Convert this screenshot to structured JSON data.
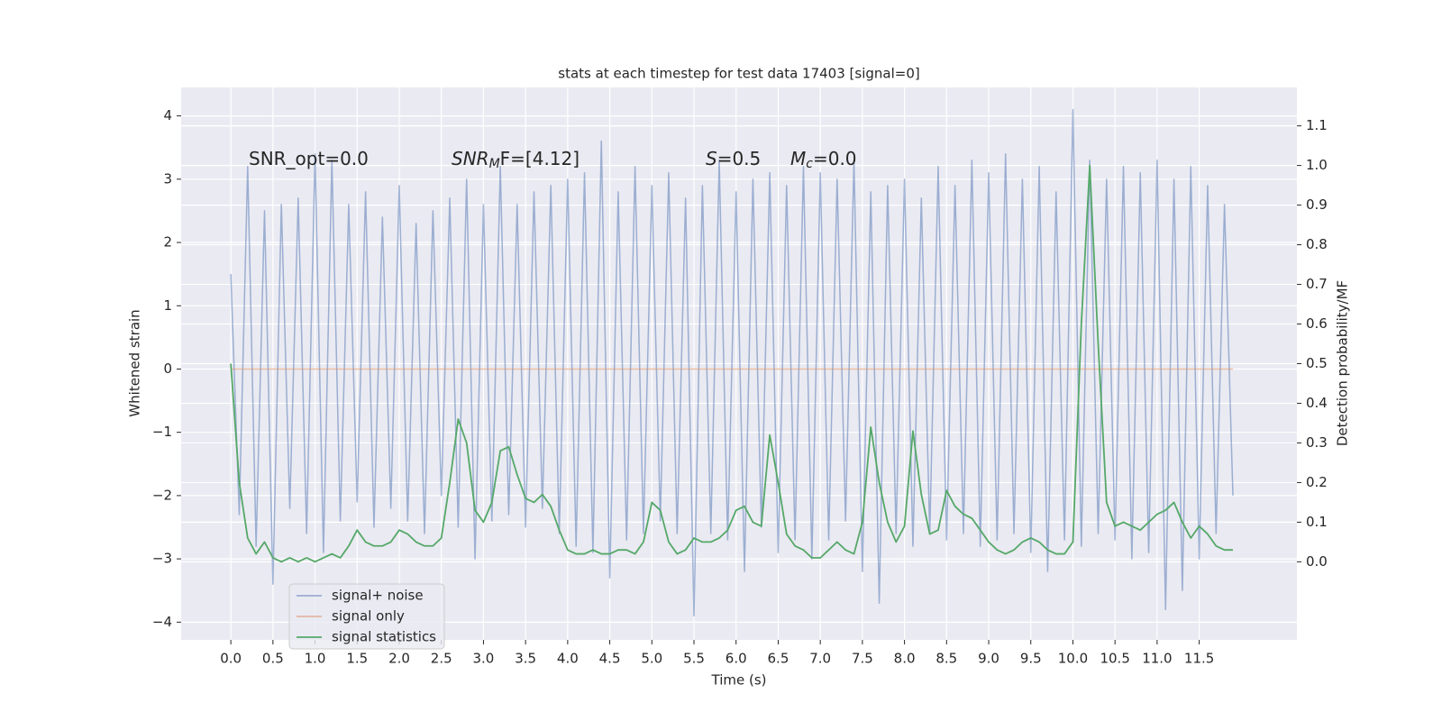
{
  "chart_data": {
    "type": "line",
    "title": "stats at each timestep for test data 17403 [signal=0]",
    "xlabel": "Time (s)",
    "ylabel": "Whitened strain",
    "y2label": "Detection probability/MF",
    "annotations": [
      {
        "text": "SNR_opt=0.0"
      },
      {
        "base": "SNR",
        "sub": "M",
        "rest": "F=[4.12]"
      },
      {
        "base": "S",
        "rest": "=0.5"
      },
      {
        "base": "M",
        "sub": "c",
        "rest": "=0.0"
      }
    ],
    "xlim": [
      -0.59,
      12.66
    ],
    "ylim": [
      -4.28,
      4.45
    ],
    "y2lim": [
      -0.197,
      1.197
    ],
    "xticks": [
      {
        "value": 0,
        "label": "0.0"
      },
      {
        "value": 0.5,
        "label": "0.5"
      },
      {
        "value": 1,
        "label": "1.0"
      },
      {
        "value": 1.5,
        "label": "1.5"
      },
      {
        "value": 2,
        "label": "2.0"
      },
      {
        "value": 2.5,
        "label": "2.5"
      },
      {
        "value": 3,
        "label": "3.0"
      },
      {
        "value": 3.5,
        "label": "3.5"
      },
      {
        "value": 4,
        "label": "4.0"
      },
      {
        "value": 4.5,
        "label": "4.5"
      },
      {
        "value": 5,
        "label": "5.0"
      },
      {
        "value": 5.5,
        "label": "5.5"
      },
      {
        "value": 6,
        "label": "6.0"
      },
      {
        "value": 6.5,
        "label": "6.5"
      },
      {
        "value": 7,
        "label": "7.0"
      },
      {
        "value": 7.5,
        "label": "7.5"
      },
      {
        "value": 8,
        "label": "8.0"
      },
      {
        "value": 8.5,
        "label": "8.5"
      },
      {
        "value": 9,
        "label": "9.0"
      },
      {
        "value": 9.5,
        "label": "9.5"
      },
      {
        "value": 10,
        "label": "10.0"
      },
      {
        "value": 10.5,
        "label": "10.5"
      },
      {
        "value": 11,
        "label": "11.0"
      },
      {
        "value": 11.5,
        "label": "11.5"
      }
    ],
    "yticks": [
      {
        "value": -4,
        "label": "−4"
      },
      {
        "value": -3,
        "label": "−3"
      },
      {
        "value": -2,
        "label": "−2"
      },
      {
        "value": -1,
        "label": "−1"
      },
      0,
      1,
      2,
      3,
      4
    ],
    "y2ticks": [
      {
        "value": 0,
        "label": "0.0"
      },
      {
        "value": 0.1,
        "label": "0.1"
      },
      {
        "value": 0.2,
        "label": "0.2"
      },
      {
        "value": 0.3,
        "label": "0.3"
      },
      {
        "value": 0.4,
        "label": "0.4"
      },
      {
        "value": 0.5,
        "label": "0.5"
      },
      {
        "value": 0.6,
        "label": "0.6"
      },
      {
        "value": 0.7,
        "label": "0.7"
      },
      {
        "value": 0.8,
        "label": "0.8"
      },
      {
        "value": 0.9,
        "label": "0.9"
      },
      {
        "value": 1,
        "label": "1.0"
      },
      {
        "value": 1.1,
        "label": "1.1"
      }
    ],
    "grid": true,
    "legend": "lower left",
    "series": [
      {
        "name": "signal+ noise",
        "color": "#4c72b0",
        "opacity": 0.5,
        "x": [
          0.0,
          0.1,
          0.2,
          0.3,
          0.4,
          0.5,
          0.6,
          0.7,
          0.8,
          0.9,
          1.0,
          1.1,
          1.2,
          1.3,
          1.4,
          1.5,
          1.6,
          1.7,
          1.8,
          1.9,
          2.0,
          2.1,
          2.2,
          2.3,
          2.4,
          2.5,
          2.6,
          2.7,
          2.8,
          2.9,
          3.0,
          3.1,
          3.2,
          3.3,
          3.4,
          3.5,
          3.6,
          3.7,
          3.8,
          3.9,
          4.0,
          4.1,
          4.2,
          4.3,
          4.4,
          4.5,
          4.6,
          4.7,
          4.8,
          4.9,
          5.0,
          5.1,
          5.2,
          5.3,
          5.4,
          5.5,
          5.6,
          5.7,
          5.8,
          5.9,
          6.0,
          6.1,
          6.2,
          6.3,
          6.4,
          6.5,
          6.6,
          6.7,
          6.8,
          6.9,
          7.0,
          7.1,
          7.2,
          7.3,
          7.4,
          7.5,
          7.6,
          7.7,
          7.8,
          7.9,
          8.0,
          8.1,
          8.2,
          8.3,
          8.4,
          8.5,
          8.6,
          8.7,
          8.8,
          8.9,
          9.0,
          9.1,
          9.2,
          9.3,
          9.4,
          9.5,
          9.6,
          9.7,
          9.8,
          9.9,
          10.0,
          10.1,
          10.2,
          10.3,
          10.4,
          10.5,
          10.6,
          10.7,
          10.8,
          10.9,
          11.0,
          11.1,
          11.2,
          11.3,
          11.4,
          11.5,
          11.6,
          11.7,
          11.8,
          11.9
        ],
        "values": [
          1.5,
          -2.3,
          3.2,
          -2.8,
          2.5,
          -3.4,
          2.6,
          -2.2,
          2.7,
          -2.6,
          3.4,
          -2.9,
          3.3,
          -2.4,
          2.6,
          -2.1,
          2.8,
          -2.5,
          2.4,
          -2.2,
          2.9,
          -2.4,
          2.3,
          -2.6,
          2.5,
          -2.0,
          2.7,
          -2.5,
          3.0,
          -3.0,
          2.6,
          -2.4,
          3.2,
          -2.3,
          2.6,
          -2.5,
          2.8,
          -2.2,
          2.9,
          -2.6,
          3.0,
          -2.8,
          3.1,
          -2.9,
          3.6,
          -3.3,
          2.8,
          -2.7,
          3.2,
          -2.6,
          2.9,
          -2.4,
          3.1,
          -2.6,
          2.7,
          -3.9,
          2.9,
          -2.6,
          3.3,
          -2.7,
          2.8,
          -3.2,
          3.0,
          -2.5,
          3.1,
          -2.9,
          2.9,
          -2.7,
          3.2,
          -3.0,
          3.1,
          -2.7,
          3.0,
          -2.4,
          3.3,
          -3.2,
          2.8,
          -3.7,
          2.9,
          -2.6,
          3.0,
          -2.8,
          2.7,
          -2.6,
          3.2,
          -2.7,
          2.9,
          -2.6,
          3.3,
          -2.8,
          3.1,
          -2.7,
          3.4,
          -2.6,
          3.0,
          -2.9,
          3.2,
          -3.2,
          2.8,
          -2.7,
          4.1,
          -2.8,
          3.3,
          -2.6,
          3.0,
          -2.7,
          3.2,
          -3.0,
          3.1,
          -2.9,
          3.3,
          -3.8,
          3.0,
          -3.5,
          3.2,
          -3.0,
          2.9,
          -2.6,
          2.6,
          -2.0
        ]
      },
      {
        "name": "signal only",
        "color": "#dd8452",
        "opacity": 0.5,
        "x": [
          0.0,
          11.9
        ],
        "values": [
          0,
          0
        ]
      },
      {
        "name": "signal statistics",
        "color": "#55a868",
        "opacity": 1,
        "axis": "y2",
        "x": [
          0.0,
          0.1,
          0.2,
          0.3,
          0.4,
          0.5,
          0.6,
          0.7,
          0.8,
          0.9,
          1.0,
          1.1,
          1.2,
          1.3,
          1.4,
          1.5,
          1.6,
          1.7,
          1.8,
          1.9,
          2.0,
          2.1,
          2.2,
          2.3,
          2.4,
          2.5,
          2.6,
          2.7,
          2.8,
          2.9,
          3.0,
          3.1,
          3.2,
          3.3,
          3.4,
          3.5,
          3.6,
          3.7,
          3.8,
          3.9,
          4.0,
          4.1,
          4.2,
          4.3,
          4.4,
          4.5,
          4.6,
          4.7,
          4.8,
          4.9,
          5.0,
          5.1,
          5.2,
          5.3,
          5.4,
          5.5,
          5.6,
          5.7,
          5.8,
          5.9,
          6.0,
          6.1,
          6.2,
          6.3,
          6.4,
          6.5,
          6.6,
          6.7,
          6.8,
          6.9,
          7.0,
          7.1,
          7.2,
          7.3,
          7.4,
          7.5,
          7.6,
          7.7,
          7.8,
          7.9,
          8.0,
          8.1,
          8.2,
          8.3,
          8.4,
          8.5,
          8.6,
          8.7,
          8.8,
          8.9,
          9.0,
          9.1,
          9.2,
          9.3,
          9.4,
          9.5,
          9.6,
          9.7,
          9.8,
          9.9,
          10.0,
          10.1,
          10.2,
          10.3,
          10.4,
          10.5,
          10.6,
          10.7,
          10.8,
          10.9,
          11.0,
          11.1,
          11.2,
          11.3,
          11.4,
          11.5,
          11.6,
          11.7,
          11.8,
          11.9
        ],
        "values": [
          0.5,
          0.2,
          0.06,
          0.02,
          0.05,
          0.01,
          0.0,
          0.01,
          0.0,
          0.01,
          0.0,
          0.01,
          0.02,
          0.01,
          0.04,
          0.08,
          0.05,
          0.04,
          0.04,
          0.05,
          0.08,
          0.07,
          0.05,
          0.04,
          0.04,
          0.06,
          0.2,
          0.36,
          0.3,
          0.13,
          0.1,
          0.15,
          0.28,
          0.29,
          0.22,
          0.16,
          0.15,
          0.17,
          0.14,
          0.08,
          0.03,
          0.02,
          0.02,
          0.03,
          0.02,
          0.02,
          0.03,
          0.03,
          0.02,
          0.05,
          0.15,
          0.13,
          0.05,
          0.02,
          0.03,
          0.06,
          0.05,
          0.05,
          0.06,
          0.08,
          0.13,
          0.14,
          0.1,
          0.09,
          0.32,
          0.2,
          0.07,
          0.04,
          0.03,
          0.01,
          0.01,
          0.03,
          0.05,
          0.03,
          0.02,
          0.1,
          0.34,
          0.2,
          0.1,
          0.05,
          0.09,
          0.33,
          0.17,
          0.07,
          0.08,
          0.18,
          0.14,
          0.12,
          0.11,
          0.08,
          0.05,
          0.03,
          0.02,
          0.03,
          0.05,
          0.06,
          0.05,
          0.03,
          0.02,
          0.02,
          0.05,
          0.6,
          1.0,
          0.55,
          0.15,
          0.09,
          0.1,
          0.09,
          0.08,
          0.1,
          0.12,
          0.13,
          0.15,
          0.1,
          0.06,
          0.09,
          0.07,
          0.04,
          0.03,
          0.03
        ]
      }
    ]
  }
}
